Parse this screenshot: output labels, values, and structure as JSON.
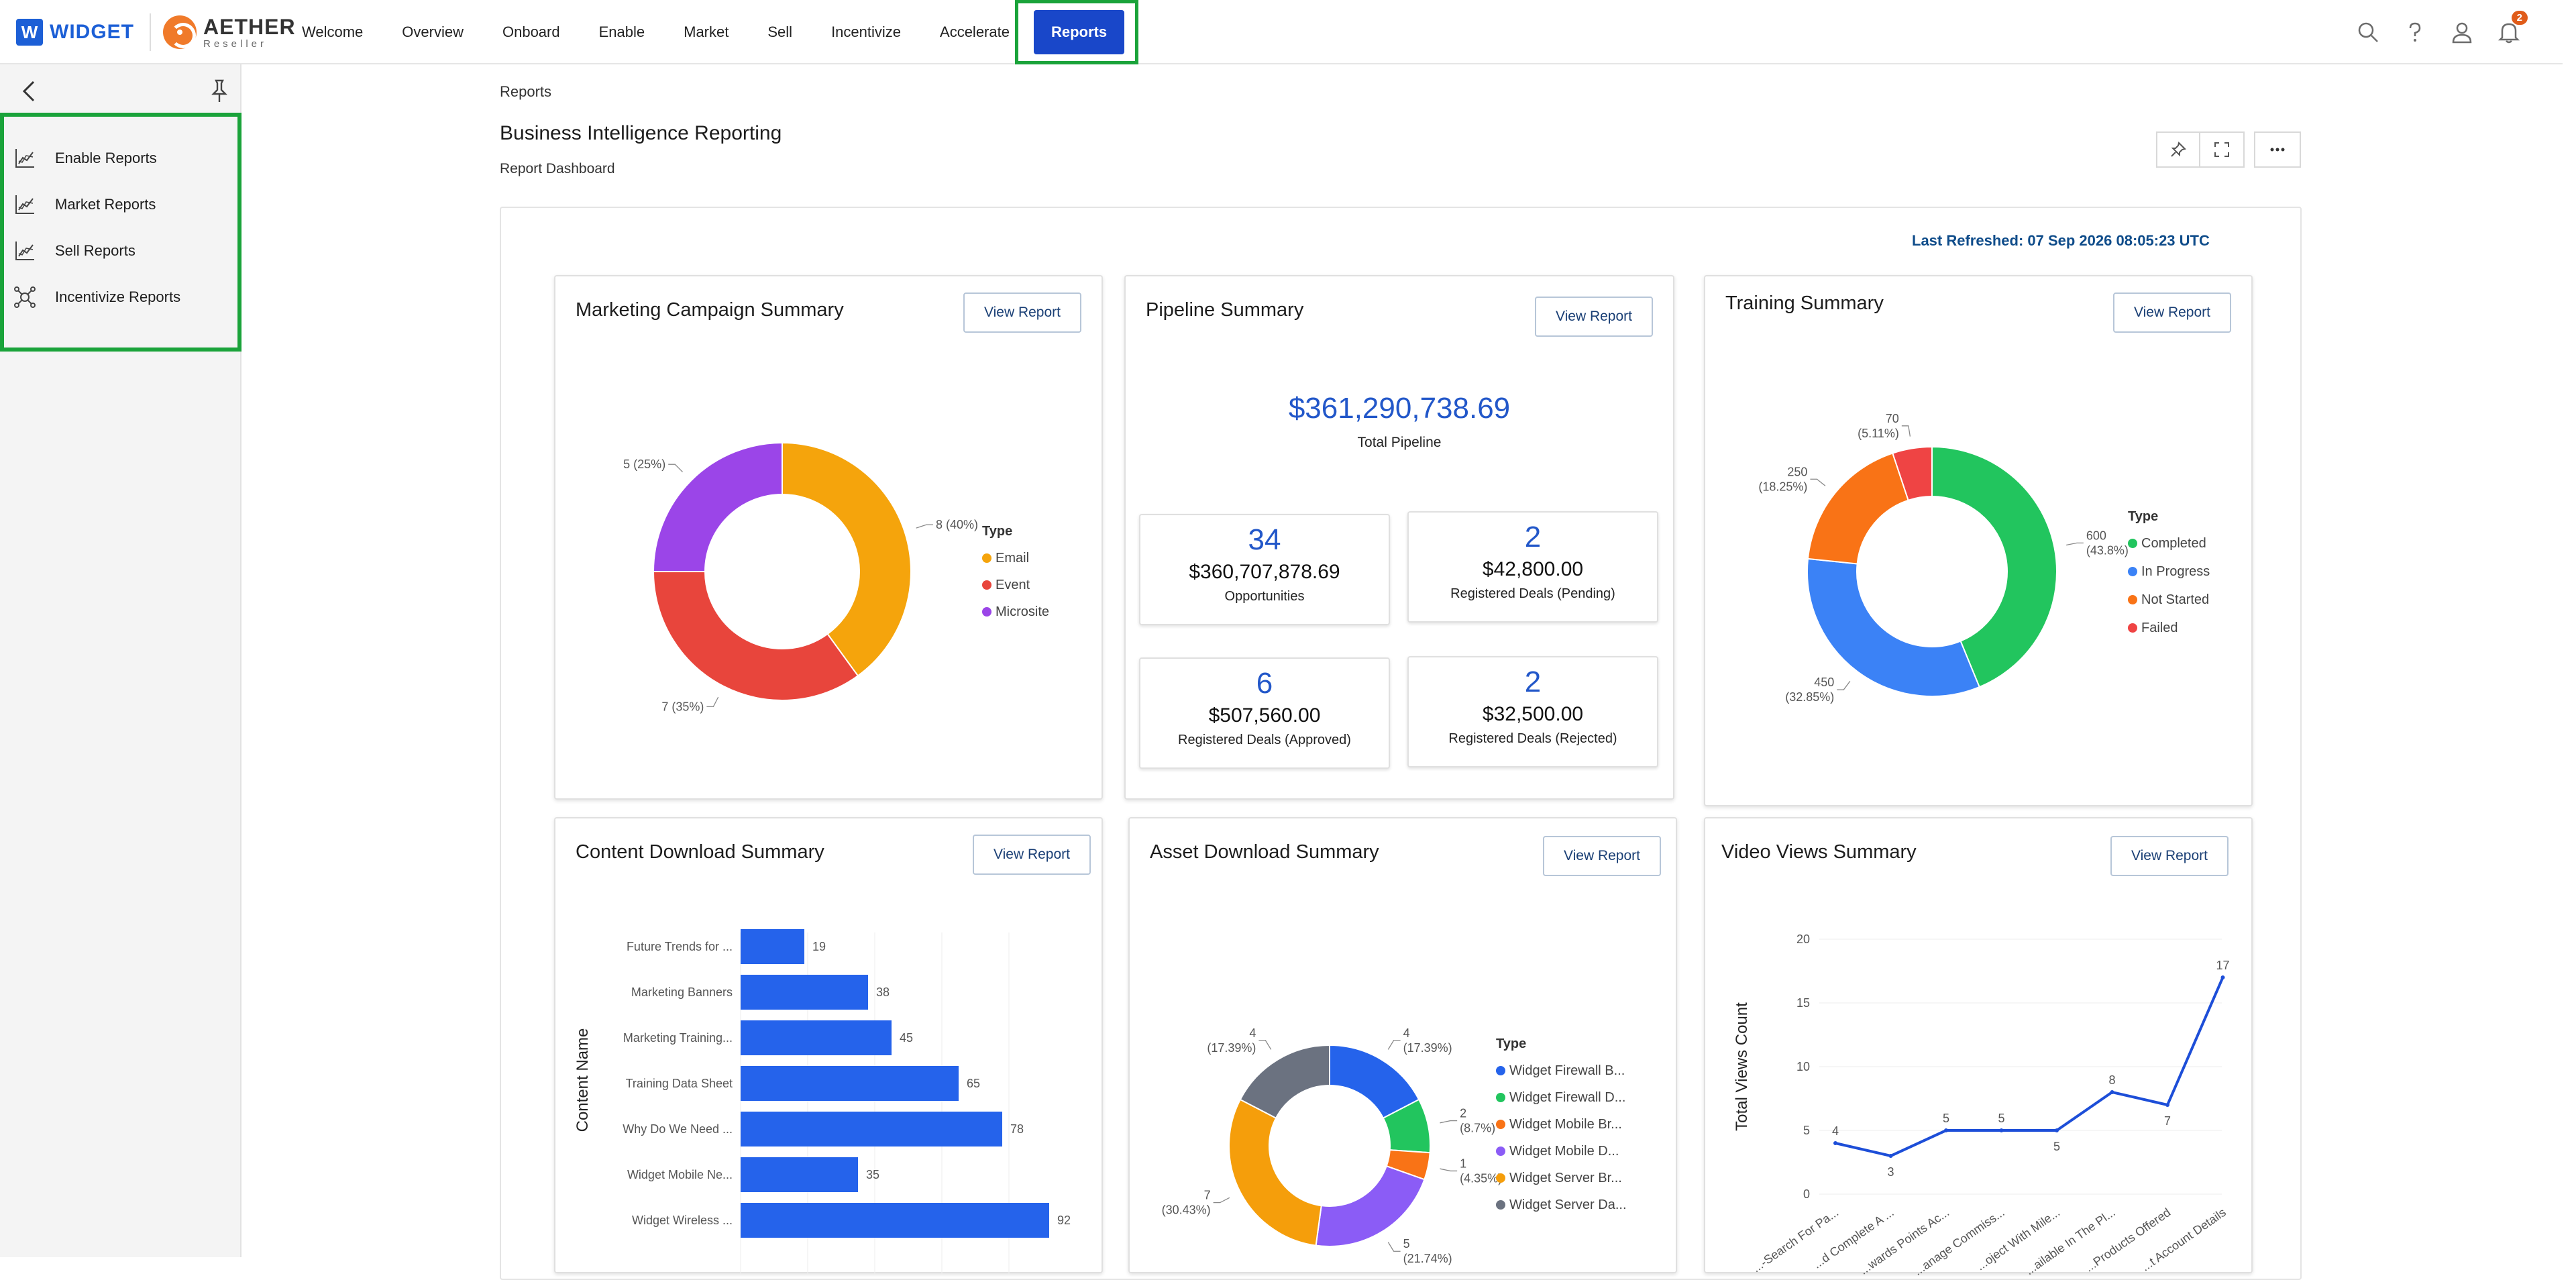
{
  "brand": {
    "logo_letter": "W",
    "logo_name": "WIDGET",
    "partner_name": "AETHER",
    "partner_tagline": "Reseller"
  },
  "nav": {
    "items": [
      {
        "label": "Welcome"
      },
      {
        "label": "Overview"
      },
      {
        "label": "Onboard"
      },
      {
        "label": "Enable"
      },
      {
        "label": "Market"
      },
      {
        "label": "Sell"
      },
      {
        "label": "Incentivize"
      },
      {
        "label": "Accelerate"
      },
      {
        "label": "Reports",
        "active": true
      }
    ],
    "notifications_count": "2",
    "icons": [
      "search-icon",
      "help-icon",
      "user-icon",
      "bell-icon"
    ]
  },
  "sidebar": {
    "items": [
      {
        "label": "Enable Reports",
        "icon": "chart-icon"
      },
      {
        "label": "Market Reports",
        "icon": "chart-icon"
      },
      {
        "label": "Sell Reports",
        "icon": "chart-icon"
      },
      {
        "label": "Incentivize Reports",
        "icon": "network-icon"
      }
    ]
  },
  "page": {
    "breadcrumb": "Reports",
    "title": "Business Intelligence Reporting",
    "subtitle": "Report Dashboard",
    "last_refreshed": "Last Refreshed: 07 Sep 2026 08:05:23 UTC"
  },
  "view_report_label": "View Report",
  "cards": {
    "marketing": {
      "title": "Marketing Campaign Summary"
    },
    "pipeline": {
      "title": "Pipeline Summary",
      "total_value": "$361,290,738.69",
      "total_label": "Total Pipeline",
      "stats": [
        {
          "count": "34",
          "amount": "$360,707,878.69",
          "label": "Opportunities"
        },
        {
          "count": "2",
          "amount": "$42,800.00",
          "label": "Registered Deals (Pending)"
        },
        {
          "count": "6",
          "amount": "$507,560.00",
          "label": "Registered Deals (Approved)"
        },
        {
          "count": "2",
          "amount": "$32,500.00",
          "label": "Registered Deals (Rejected)"
        }
      ]
    },
    "training": {
      "title": "Training Summary"
    },
    "content": {
      "title": "Content Download Summary"
    },
    "asset": {
      "title": "Asset Download Summary"
    },
    "video": {
      "title": "Video Views Summary"
    }
  },
  "chart_data": [
    {
      "id": "marketing",
      "type": "pie",
      "legend_title": "Type",
      "categories": [
        "Email",
        "Event",
        "Microsite"
      ],
      "values": [
        8,
        7,
        5
      ],
      "labels": [
        "8 (40%)",
        "7 (35%)",
        "5 (25%)"
      ],
      "colors": [
        "#f5a40c",
        "#e8453c",
        "#9b45e8"
      ]
    },
    {
      "id": "training",
      "type": "pie",
      "legend_title": "Type",
      "categories": [
        "Completed",
        "In Progress",
        "Not Started",
        "Failed"
      ],
      "values": [
        600,
        450,
        250,
        70
      ],
      "labels": [
        "600 (43.8%)",
        "450 (32.85%)",
        "250 (18.25%)",
        "70 (5.11%)"
      ],
      "colors": [
        "#22c55e",
        "#3b82f6",
        "#f97316",
        "#ef4444"
      ]
    },
    {
      "id": "content",
      "type": "bar",
      "orientation": "horizontal",
      "ylabel": "Content Name",
      "categories": [
        "Future Trends for ...",
        "Marketing Banners",
        "Marketing Training...",
        "Training Data Sheet",
        "Why Do We Need ...",
        "Widget Mobile Ne...",
        "Widget Wireless ..."
      ],
      "values": [
        19,
        38,
        45,
        65,
        78,
        35,
        92
      ],
      "color": "#2563eb"
    },
    {
      "id": "asset",
      "type": "pie",
      "legend_title": "Type",
      "categories": [
        "Widget Firewall B...",
        "Widget Firewall D...",
        "Widget Mobile Br...",
        "Widget Mobile D...",
        "Widget Server Br...",
        "Widget Server Da..."
      ],
      "values": [
        4,
        2,
        1,
        5,
        7,
        4
      ],
      "labels": [
        "4 (17.39%)",
        "2 (8.7%)",
        "1 (4.35%)",
        "5 (21.74%)",
        "7 (30.43%)",
        "4 (17.39%)"
      ],
      "colors": [
        "#2563eb",
        "#22c55e",
        "#f97316",
        "#8b5cf6",
        "#f59e0b",
        "#6b7280"
      ]
    },
    {
      "id": "video",
      "type": "line",
      "ylabel": "Total Views Count",
      "ylim": [
        0,
        20
      ],
      "yticks": [
        "0",
        "5",
        "10",
        "15",
        "20"
      ],
      "categories": [
        "...-Search For Pa...",
        "...d Complete A ...",
        "...wards Points Ac...",
        "...anage Commiss...",
        "...oject With Mile...",
        "...ailable In The Pl...",
        "...Products Offered",
        "...t Account Details"
      ],
      "values": [
        4,
        3,
        5,
        5,
        5,
        8,
        7,
        17
      ],
      "color": "#1d4ed8"
    }
  ]
}
